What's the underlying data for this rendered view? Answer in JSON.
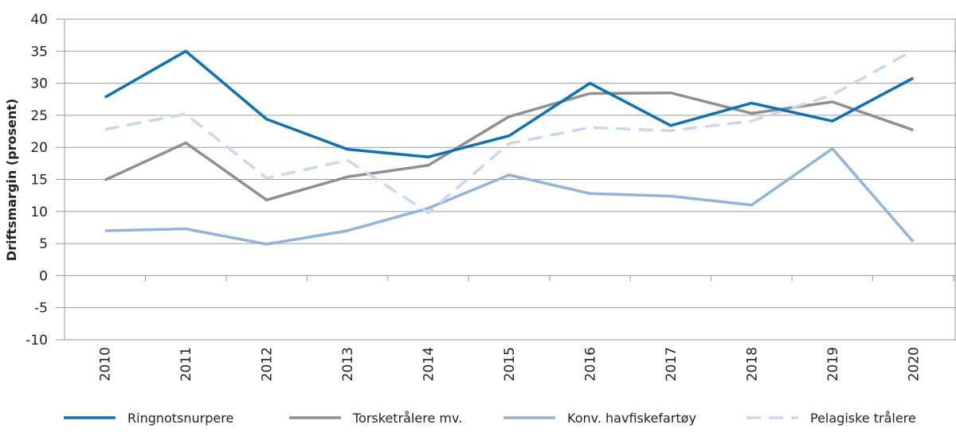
{
  "chart_data": {
    "type": "line",
    "title": "",
    "xlabel": "",
    "ylabel": "Driftsmargin (prosent)",
    "ylim": [
      -10,
      40
    ],
    "yticks": [
      40,
      35,
      30,
      25,
      20,
      15,
      10,
      5,
      0,
      -5,
      -10
    ],
    "grid": true,
    "legend_placement": "bottom",
    "categories": [
      "2010",
      "2011",
      "2012",
      "2013",
      "2014",
      "2015",
      "2016",
      "2017",
      "2018",
      "2019",
      "2020"
    ],
    "series": [
      {
        "name": "Ringnotsnurpere",
        "color": "#0a72b8",
        "dash": false,
        "values": [
          27.8,
          35.0,
          24.4,
          19.7,
          18.5,
          21.8,
          30.0,
          23.4,
          26.9,
          24.1,
          30.8
        ]
      },
      {
        "name": "Torsketrålere mv.",
        "color": "#8f8f8f",
        "dash": false,
        "values": [
          14.9,
          20.7,
          11.8,
          15.4,
          17.2,
          24.8,
          28.4,
          28.5,
          25.3,
          27.1,
          22.7
        ]
      },
      {
        "name": "Konv. havfiskefartøy",
        "color": "#8fb4e0",
        "dash": false,
        "values": [
          7.0,
          7.3,
          4.9,
          7.0,
          10.5,
          15.7,
          12.8,
          12.4,
          11.0,
          19.8,
          5.3
        ]
      },
      {
        "name": "Pelagiske trålere",
        "color": "#c7d8ee",
        "dash": true,
        "values": [
          22.8,
          25.2,
          15.2,
          18.0,
          9.8,
          20.6,
          23.1,
          22.6,
          24.1,
          28.2,
          35.1
        ]
      }
    ]
  }
}
